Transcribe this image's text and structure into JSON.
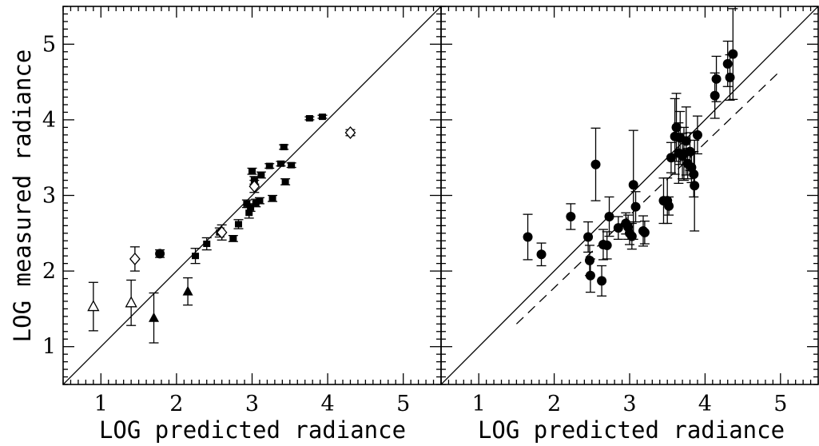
{
  "chart_data": [
    {
      "type": "scatter",
      "panel": "left",
      "xlabel": "LOG predicted radiance",
      "ylabel": "LOG measured radiance",
      "xlim": [
        0.5,
        5.5
      ],
      "ylim": [
        0.5,
        5.5
      ],
      "xticks": [
        1,
        2,
        3,
        4,
        5
      ],
      "yticks": [
        1,
        2,
        3,
        4,
        5
      ],
      "grid": false,
      "reference_lines": [
        {
          "style": "solid",
          "x": [
            0.5,
            5.5
          ],
          "y": [
            0.5,
            5.5
          ]
        }
      ],
      "series": [
        {
          "marker": "filled-square",
          "points": [
            {
              "x": 2.25,
              "y": 2.2,
              "e": 0.1
            },
            {
              "x": 2.4,
              "y": 2.36,
              "e": 0.08
            },
            {
              "x": 2.57,
              "y": 2.51,
              "e": 0.06
            },
            {
              "x": 2.75,
              "y": 2.43,
              "e": 0.04
            },
            {
              "x": 2.82,
              "y": 2.62,
              "e": 0.06
            },
            {
              "x": 2.93,
              "y": 2.89,
              "e": 0.05
            },
            {
              "x": 2.96,
              "y": 2.77,
              "e": 0.07
            },
            {
              "x": 2.98,
              "y": 2.84,
              "e": 0.05
            },
            {
              "x": 3.0,
              "y": 3.32,
              "e": 0.04
            },
            {
              "x": 3.03,
              "y": 3.2,
              "e": 0.05
            },
            {
              "x": 3.05,
              "y": 2.9,
              "e": 0.05
            },
            {
              "x": 3.1,
              "y": 2.93,
              "e": 0.04
            },
            {
              "x": 3.12,
              "y": 3.27,
              "e": 0.04
            },
            {
              "x": 3.23,
              "y": 3.39,
              "e": 0.03
            },
            {
              "x": 3.27,
              "y": 2.96,
              "e": 0.04
            },
            {
              "x": 3.38,
              "y": 3.42,
              "e": 0.03
            },
            {
              "x": 3.42,
              "y": 3.64,
              "e": 0.03
            },
            {
              "x": 3.44,
              "y": 3.18,
              "e": 0.04
            },
            {
              "x": 3.52,
              "y": 3.4,
              "e": 0.03
            },
            {
              "x": 3.76,
              "y": 4.02,
              "e": 0.02
            },
            {
              "x": 3.93,
              "y": 4.04,
              "e": 0.02
            }
          ]
        },
        {
          "marker": "filled-circle",
          "points": [
            {
              "x": 1.78,
              "y": 2.23,
              "e": 0.05
            }
          ]
        },
        {
          "marker": "open-diamond",
          "points": [
            {
              "x": 1.45,
              "y": 2.16,
              "e": 0.16
            },
            {
              "x": 2.6,
              "y": 2.51,
              "e": 0.1
            },
            {
              "x": 3.03,
              "y": 3.12,
              "e": 0.08
            },
            {
              "x": 4.3,
              "y": 3.83,
              "e": 0.04
            }
          ]
        },
        {
          "marker": "open-triangle",
          "points": [
            {
              "x": 0.9,
              "y": 1.53,
              "e": 0.32
            },
            {
              "x": 1.4,
              "y": 1.58,
              "e": 0.3
            }
          ]
        },
        {
          "marker": "filled-triangle",
          "points": [
            {
              "x": 1.7,
              "y": 1.38,
              "e": 0.33
            },
            {
              "x": 2.15,
              "y": 1.73,
              "e": 0.18
            }
          ]
        }
      ]
    },
    {
      "type": "scatter",
      "panel": "right",
      "xlabel": "LOG predicted radiance",
      "ylabel": "",
      "xlim": [
        0.5,
        5.5
      ],
      "ylim": [
        0.5,
        5.5
      ],
      "xticks": [
        1,
        2,
        3,
        4,
        5
      ],
      "yticks": [
        1,
        2,
        3,
        4,
        5
      ],
      "grid": false,
      "reference_lines": [
        {
          "style": "solid",
          "x": [
            0.5,
            5.5
          ],
          "y": [
            0.5,
            5.5
          ]
        },
        {
          "style": "dashed",
          "x": [
            1.5,
            5.0
          ],
          "y": [
            1.3,
            4.65
          ]
        }
      ],
      "series": [
        {
          "marker": "filled-circle",
          "points": [
            {
              "x": 1.65,
              "y": 2.45,
              "e": 0.3
            },
            {
              "x": 1.83,
              "y": 2.22,
              "e": 0.15
            },
            {
              "x": 2.22,
              "y": 2.72,
              "e": 0.17
            },
            {
              "x": 2.45,
              "y": 2.45,
              "e": 0.2
            },
            {
              "x": 2.47,
              "y": 2.14,
              "e": 0.2
            },
            {
              "x": 2.48,
              "y": 1.94,
              "e": 0.22
            },
            {
              "x": 2.55,
              "y": 3.41,
              "e": 0.48
            },
            {
              "x": 2.63,
              "y": 1.87,
              "e": 0.2
            },
            {
              "x": 2.65,
              "y": 2.35,
              "e": 0.2
            },
            {
              "x": 2.7,
              "y": 2.34,
              "e": 0.18
            },
            {
              "x": 2.73,
              "y": 2.72,
              "e": 0.26
            },
            {
              "x": 2.85,
              "y": 2.57,
              "e": 0.15
            },
            {
              "x": 2.95,
              "y": 2.63,
              "e": 0.14
            },
            {
              "x": 2.98,
              "y": 2.58,
              "e": 0.16
            },
            {
              "x": 3.0,
              "y": 2.5,
              "e": 0.15
            },
            {
              "x": 3.03,
              "y": 2.46,
              "e": 0.17
            },
            {
              "x": 3.05,
              "y": 3.14,
              "e": 0.72
            },
            {
              "x": 3.08,
              "y": 2.85,
              "e": 0.2
            },
            {
              "x": 3.18,
              "y": 2.53,
              "e": 0.2
            },
            {
              "x": 3.2,
              "y": 2.51,
              "e": 0.15
            },
            {
              "x": 3.45,
              "y": 2.93,
              "e": 0.3
            },
            {
              "x": 3.5,
              "y": 2.93,
              "e": 0.3
            },
            {
              "x": 3.52,
              "y": 2.86,
              "e": 0.12
            },
            {
              "x": 3.55,
              "y": 3.5,
              "e": 0.2
            },
            {
              "x": 3.6,
              "y": 3.78,
              "e": 0.5
            },
            {
              "x": 3.62,
              "y": 3.9,
              "e": 0.45
            },
            {
              "x": 3.65,
              "y": 3.56,
              "e": 0.4
            },
            {
              "x": 3.67,
              "y": 3.76,
              "e": 0.35
            },
            {
              "x": 3.7,
              "y": 3.52,
              "e": 0.3
            },
            {
              "x": 3.72,
              "y": 3.55,
              "e": 0.35
            },
            {
              "x": 3.75,
              "y": 3.72,
              "e": 0.45
            },
            {
              "x": 3.77,
              "y": 3.42,
              "e": 0.2
            },
            {
              "x": 3.8,
              "y": 3.58,
              "e": 0.25
            },
            {
              "x": 3.82,
              "y": 3.37,
              "e": 0.2
            },
            {
              "x": 3.85,
              "y": 3.28,
              "e": 0.3
            },
            {
              "x": 3.86,
              "y": 3.13,
              "e": 0.6
            },
            {
              "x": 3.9,
              "y": 3.8,
              "e": 0.25
            },
            {
              "x": 4.13,
              "y": 4.32,
              "e": 0.3
            },
            {
              "x": 4.15,
              "y": 4.54,
              "e": 0.3
            },
            {
              "x": 4.3,
              "y": 4.74,
              "e": 0.3
            },
            {
              "x": 4.33,
              "y": 4.56,
              "e": 0.3
            },
            {
              "x": 4.37,
              "y": 4.87,
              "e": 0.6
            }
          ]
        }
      ]
    }
  ]
}
